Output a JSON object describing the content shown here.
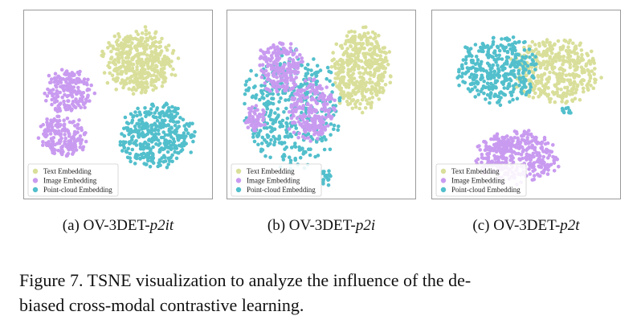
{
  "chart_data": [
    {
      "type": "scatter",
      "title": "",
      "xlabel": "",
      "ylabel": "",
      "grid": false,
      "legend_position": "bottom-left",
      "series": [
        {
          "name": "Text Embedding",
          "color": "#d9df9a"
        },
        {
          "name": "Image Embedding",
          "color": "#c99bf0"
        },
        {
          "name": "Point-cloud Embedding",
          "color": "#52bfcc"
        }
      ],
      "clusters": [
        {
          "series": 0,
          "cx": 0.62,
          "cy": 0.25,
          "rx": 0.21,
          "ry": 0.19,
          "n": 420
        },
        {
          "series": 1,
          "cx": 0.22,
          "cy": 0.42,
          "rx": 0.15,
          "ry": 0.13,
          "n": 180
        },
        {
          "series": 1,
          "cx": 0.18,
          "cy": 0.68,
          "rx": 0.14,
          "ry": 0.12,
          "n": 180
        },
        {
          "series": 2,
          "cx": 0.72,
          "cy": 0.68,
          "rx": 0.22,
          "ry": 0.19,
          "n": 380
        }
      ]
    },
    {
      "type": "scatter",
      "title": "",
      "xlabel": "",
      "ylabel": "",
      "grid": false,
      "legend_position": "bottom-left",
      "series": [
        {
          "name": "Text Embedding",
          "color": "#d9df9a"
        },
        {
          "name": "Image Embedding",
          "color": "#c99bf0"
        },
        {
          "name": "Point-cloud Embedding",
          "color": "#52bfcc"
        }
      ],
      "clusters": [
        {
          "series": 0,
          "cx": 0.73,
          "cy": 0.3,
          "rx": 0.17,
          "ry": 0.24,
          "n": 420
        },
        {
          "series": 2,
          "cx": 0.34,
          "cy": 0.52,
          "rx": 0.28,
          "ry": 0.34,
          "n": 420
        },
        {
          "series": 1,
          "cx": 0.26,
          "cy": 0.28,
          "rx": 0.13,
          "ry": 0.15,
          "n": 200
        },
        {
          "series": 1,
          "cx": 0.44,
          "cy": 0.53,
          "rx": 0.14,
          "ry": 0.18,
          "n": 220
        },
        {
          "series": 1,
          "cx": 0.12,
          "cy": 0.58,
          "rx": 0.06,
          "ry": 0.08,
          "n": 60
        },
        {
          "series": 2,
          "cx": 0.53,
          "cy": 0.92,
          "rx": 0.03,
          "ry": 0.05,
          "n": 20
        }
      ]
    },
    {
      "type": "scatter",
      "title": "",
      "xlabel": "",
      "ylabel": "",
      "grid": false,
      "legend_position": "bottom-left",
      "series": [
        {
          "name": "Text Embedding",
          "color": "#d9df9a"
        },
        {
          "name": "Image Embedding",
          "color": "#c99bf0"
        },
        {
          "name": "Point-cloud Embedding",
          "color": "#52bfcc"
        }
      ],
      "clusters": [
        {
          "series": 0,
          "cx": 0.67,
          "cy": 0.31,
          "rx": 0.26,
          "ry": 0.19,
          "n": 420
        },
        {
          "series": 2,
          "cx": 0.33,
          "cy": 0.3,
          "rx": 0.24,
          "ry": 0.2,
          "n": 360
        },
        {
          "series": 1,
          "cx": 0.45,
          "cy": 0.8,
          "rx": 0.24,
          "ry": 0.15,
          "n": 380
        },
        {
          "series": 2,
          "cx": 0.73,
          "cy": 0.54,
          "rx": 0.03,
          "ry": 0.03,
          "n": 10
        }
      ]
    }
  ],
  "subcaptions": [
    {
      "prefix": "(a) OV-3DET-",
      "italic": "p2it"
    },
    {
      "prefix": "(b) OV-3DET-",
      "italic": "p2i"
    },
    {
      "prefix": "(c) OV-3DET-",
      "italic": "p2t"
    }
  ],
  "caption": {
    "line1": "Figure 7.  TSNE visualization to analyze the influence of the de-",
    "line2": "biased cross-modal contrastive learning."
  }
}
